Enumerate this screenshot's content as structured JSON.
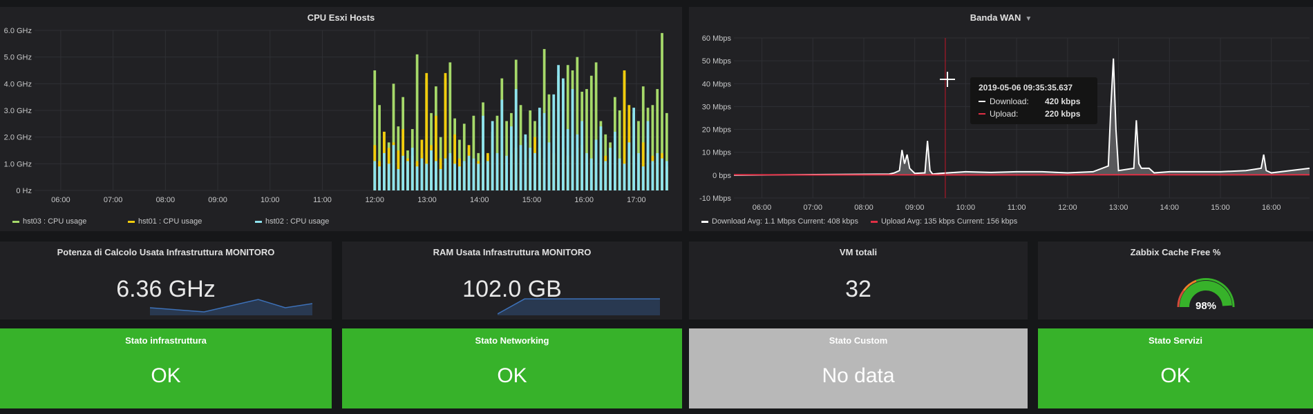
{
  "colors": {
    "background": "#161719",
    "panel": "#212124",
    "hst03": "#a6d96a",
    "hst01": "#f2cc0c",
    "hst02": "#8ee3ef",
    "download": "#ffffff",
    "upload": "#e02f44",
    "ok_green": "#37b22a",
    "nodata_grey": "#b8b8b8",
    "sparkline": "#3d71b8"
  },
  "cpu_panel": {
    "title": "CPU Esxi Hosts",
    "legend": [
      "hst03 : CPU usage",
      "hst01 : CPU usage",
      "hst02 : CPU usage"
    ]
  },
  "wan_panel": {
    "title": "Banda WAN",
    "caret_icon": "caret-down-icon",
    "legend": {
      "download": "Download  Avg: 1.1 Mbps  Current: 408 kbps",
      "upload": "Upload  Avg: 135 kbps  Current: 156 kbps"
    },
    "tooltip": {
      "time": "2019-05-06 09:35:35.637",
      "download_label": "Download:",
      "download_value": "420 kbps",
      "upload_label": "Upload:",
      "upload_value": "220 kbps"
    }
  },
  "chart_data": [
    {
      "type": "bar",
      "title": "CPU Esxi Hosts",
      "x_ticks": [
        "06:00",
        "07:00",
        "08:00",
        "09:00",
        "10:00",
        "11:00",
        "12:00",
        "13:00",
        "14:00",
        "15:00",
        "16:00",
        "17:00"
      ],
      "y_ticks": [
        "0 Hz",
        "1.0 GHz",
        "2.0 GHz",
        "3.0 GHz",
        "4.0 GHz",
        "5.0 GHz",
        "6.0 GHz"
      ],
      "ylim": [
        0,
        6
      ],
      "x_range_hours": [
        5.5,
        17.45
      ],
      "data_start_hour": 12.0,
      "bar_step_hours": 0.09,
      "series": [
        {
          "name": "hst03 : CPU usage",
          "color": "#a6d96a",
          "values": [
            4.5,
            3.2,
            2.2,
            1.8,
            4.0,
            2.4,
            3.5,
            1.5,
            2.3,
            5.1,
            1.4,
            4.2,
            2.9,
            3.9,
            2.0,
            4.2,
            4.8,
            2.7,
            1.9,
            2.5,
            1.6,
            2.8,
            1.4,
            3.3,
            1.3,
            2.2,
            2.8,
            4.2,
            2.6,
            2.9,
            4.9,
            3.2,
            1.8,
            3.0,
            2.6,
            2.4,
            5.3,
            3.6,
            3.0,
            4.3,
            4.1,
            4.7,
            4.5,
            5.0,
            3.7,
            3.8,
            4.3,
            4.8,
            2.6,
            2.1,
            1.8,
            3.5,
            3.0,
            4.4,
            2.4,
            2.9,
            2.6,
            3.9,
            3.1,
            3.2,
            3.8,
            5.9,
            2.9
          ]
        },
        {
          "name": "hst01 : CPU usage",
          "color": "#f2cc0c",
          "values": [
            1.7,
            1.1,
            2.2,
            1.6,
            1.8,
            1.5,
            2.3,
            1.2,
            1.3,
            1.1,
            1.9,
            4.4,
            1.7,
            2.8,
            1.2,
            4.4,
            1.3,
            2.1,
            1.2,
            1.0,
            1.7,
            1.2,
            1.1,
            1.3,
            1.4,
            1.9,
            1.2,
            1.5,
            1.3,
            1.4,
            1.6,
            1.2,
            1.5,
            1.2,
            2.0,
            1.6,
            1.2,
            1.5,
            1.4,
            2.2,
            1.6,
            1.3,
            1.3,
            1.6,
            1.7,
            1.4,
            1.2,
            1.5,
            1.8,
            1.3,
            1.6,
            1.5,
            1.2,
            4.5,
            3.2,
            1.3,
            1.4,
            1.8,
            1.4,
            1.3,
            1.4,
            1.4,
            0.9
          ]
        },
        {
          "name": "hst02 : CPU usage",
          "color": "#8ee3ef",
          "values": [
            1.1,
            0.9,
            1.4,
            1.0,
            1.7,
            0.8,
            1.3,
            1.1,
            1.6,
            0.9,
            1.2,
            1.0,
            1.5,
            1.1,
            0.8,
            1.2,
            1.4,
            1.0,
            0.9,
            1.1,
            1.3,
            1.2,
            1.0,
            2.8,
            1.1,
            2.6,
            1.4,
            3.4,
            1.3,
            2.4,
            3.8,
            1.7,
            2.1,
            1.6,
            1.4,
            3.1,
            2.9,
            1.8,
            3.6,
            4.7,
            4.2,
            2.3,
            3.8,
            2.1,
            2.6,
            1.4,
            1.2,
            1.9,
            2.4,
            1.1,
            1.6,
            2.2,
            1.2,
            1.0,
            1.8,
            3.1,
            1.4,
            0.9,
            2.6,
            1.1,
            1.4,
            1.2,
            1.1
          ]
        }
      ]
    },
    {
      "type": "line",
      "title": "Banda WAN",
      "x_ticks": [
        "06:00",
        "07:00",
        "08:00",
        "09:00",
        "10:00",
        "11:00",
        "12:00",
        "13:00",
        "14:00",
        "15:00",
        "16:00"
      ],
      "y_ticks": [
        "-10 Mbps",
        "0 bps",
        "10 Mbps",
        "20 Mbps",
        "30 Mbps",
        "40 Mbps",
        "50 Mbps",
        "60 Mbps"
      ],
      "ylim": [
        -10,
        60
      ],
      "x_range_hours": [
        5.45,
        16.75
      ],
      "crosshair_hour": 9.6,
      "series": [
        {
          "name": "Download",
          "color": "#ffffff",
          "x": [
            5.45,
            8.5,
            8.6,
            8.7,
            8.75,
            8.8,
            8.85,
            8.9,
            9.0,
            9.2,
            9.25,
            9.3,
            9.35,
            9.5,
            10.0,
            10.5,
            11.0,
            11.5,
            12.0,
            12.5,
            12.8,
            12.85,
            12.9,
            12.95,
            13.0,
            13.3,
            13.35,
            13.4,
            13.45,
            13.5,
            13.6,
            13.7,
            14.0,
            14.5,
            15.0,
            15.5,
            15.8,
            15.85,
            15.9,
            16.0,
            16.75
          ],
          "y": [
            0,
            0.5,
            1,
            2,
            11,
            5,
            9,
            3,
            0.8,
            1,
            15,
            2,
            0.5,
            0.8,
            1.5,
            1.2,
            1.5,
            1.5,
            1,
            1.5,
            4,
            30,
            51,
            20,
            2,
            3,
            24,
            5,
            3,
            3,
            3,
            1,
            1.5,
            1.5,
            1.5,
            2,
            3,
            9,
            2,
            1,
            3
          ]
        },
        {
          "name": "Upload",
          "color": "#e02f44",
          "x": [
            5.45,
            7.0,
            9.0,
            11.0,
            13.0,
            15.0,
            16.75
          ],
          "y": [
            0.2,
            0.1,
            0.15,
            0.1,
            0.2,
            0.15,
            0.2
          ]
        }
      ]
    }
  ],
  "stats": [
    {
      "title": "Potenza di Calcolo Usata Infrastruttura MONITORO",
      "value": "6.36 GHz",
      "spark": [
        6.1,
        6.0,
        5.9,
        6.2,
        6.5,
        6.1,
        6.3
      ]
    },
    {
      "title": "RAM Usata Infrastruttura MONITORO",
      "value": "102.0 GB",
      "spark": [
        0,
        100,
        100,
        100,
        100,
        100,
        100
      ]
    },
    {
      "title": "VM totali",
      "value": "32"
    },
    {
      "title": "Zabbix Cache Free %",
      "value": "98%",
      "gauge_percent": 98
    }
  ],
  "status_panels": [
    {
      "title": "Stato infrastruttura",
      "value": "OK",
      "color": "#37b22a"
    },
    {
      "title": "Stato Networking",
      "value": "OK",
      "color": "#37b22a"
    },
    {
      "title": "Stato Custom",
      "value": "No data",
      "color": "#b8b8b8"
    },
    {
      "title": "Stato Servizi",
      "value": "OK",
      "color": "#37b22a"
    }
  ]
}
